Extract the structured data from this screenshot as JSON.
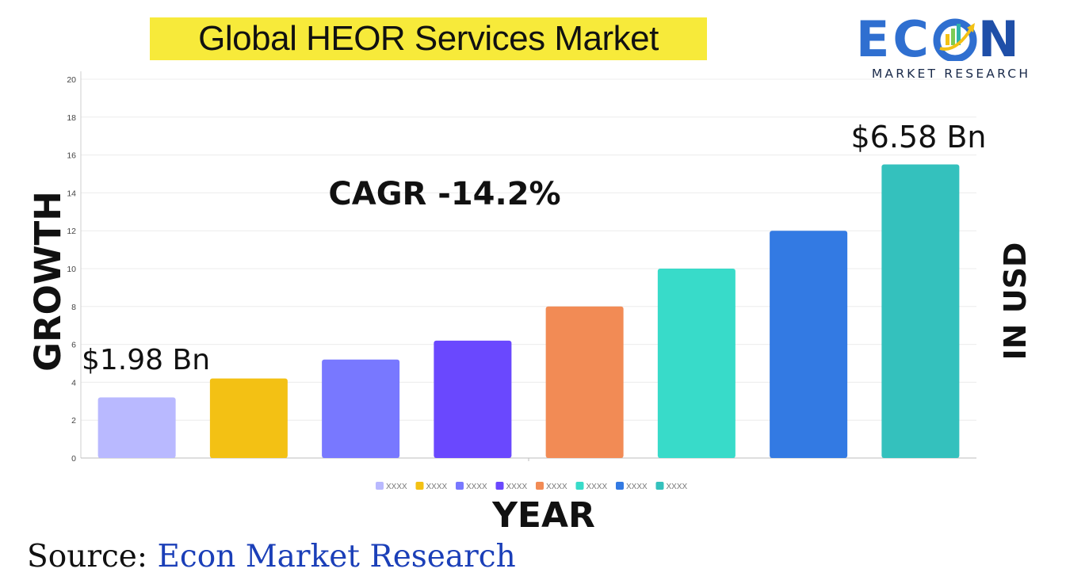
{
  "title": "Global HEOR Services Market",
  "logo": {
    "word": "ECON",
    "subtitle": "MARKET RESEARCH"
  },
  "source": {
    "label": "Source:",
    "value": "Econ Market Research"
  },
  "chart_data": {
    "type": "bar",
    "xlabel": "YEAR",
    "ylabel": "GROWTH",
    "right_label": "IN USD",
    "ylim": [
      0,
      20
    ],
    "y_ticks": [
      0,
      2,
      4,
      6,
      8,
      10,
      12,
      14,
      16,
      18,
      20
    ],
    "grid": true,
    "legend_position": "bottom",
    "categories": [
      "XXXX",
      "XXXX",
      "XXXX",
      "XXXX",
      "XXXX",
      "XXXX",
      "XXXX",
      "XXXX"
    ],
    "values": [
      3.2,
      4.2,
      5.2,
      6.2,
      8.0,
      10.0,
      12.0,
      15.5
    ],
    "colors": [
      "#b9b9ff",
      "#f3c114",
      "#7878ff",
      "#6a48fe",
      "#f28b55",
      "#38dbc9",
      "#337ae3",
      "#34c1bd"
    ],
    "annotations": [
      {
        "text": "$1.98 Bn",
        "bar_index": 0
      },
      {
        "text": "$6.58 Bn",
        "bar_index": 7
      },
      {
        "text": "CAGR -14.2%"
      }
    ]
  }
}
